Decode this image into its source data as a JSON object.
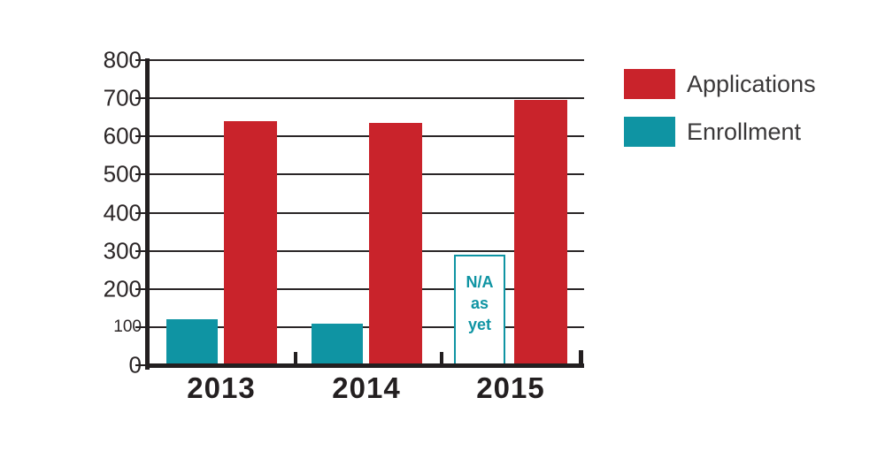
{
  "chart_data": {
    "type": "bar",
    "title": "",
    "categories": [
      "2013",
      "2014",
      "2015"
    ],
    "series": [
      {
        "name": "Applications",
        "color": "#c9232b",
        "values": [
          640,
          635,
          695
        ]
      },
      {
        "name": "Enrollment",
        "color": "#0f94a3",
        "values": [
          120,
          110,
          null
        ]
      }
    ],
    "na_annotation": {
      "lines": [
        "N/A",
        "as",
        "yet"
      ],
      "applies_to_series": "Enrollment",
      "applies_to_category": "2015",
      "box_top_value": 290,
      "box_border_color": "#0f94a3",
      "box_fill_color": "#ffffff",
      "text_color": "#0f94a3"
    },
    "ylim": [
      0,
      800
    ],
    "ytick_step": 100,
    "yticks": [
      0,
      100,
      200,
      300,
      400,
      500,
      600,
      700,
      800
    ],
    "grid": "horizontal",
    "legend_position": "top-right"
  },
  "legend": {
    "items": [
      {
        "label": "Applications",
        "color": "#c9232b"
      },
      {
        "label": "Enrollment",
        "color": "#0f94a3"
      }
    ]
  },
  "colors": {
    "axis": "#231f20",
    "gridline": "#2a2627",
    "y_label_text": "#2b2627",
    "x_label_text": "#231f20",
    "legend_text": "#3a3839",
    "background": "#ffffff"
  }
}
